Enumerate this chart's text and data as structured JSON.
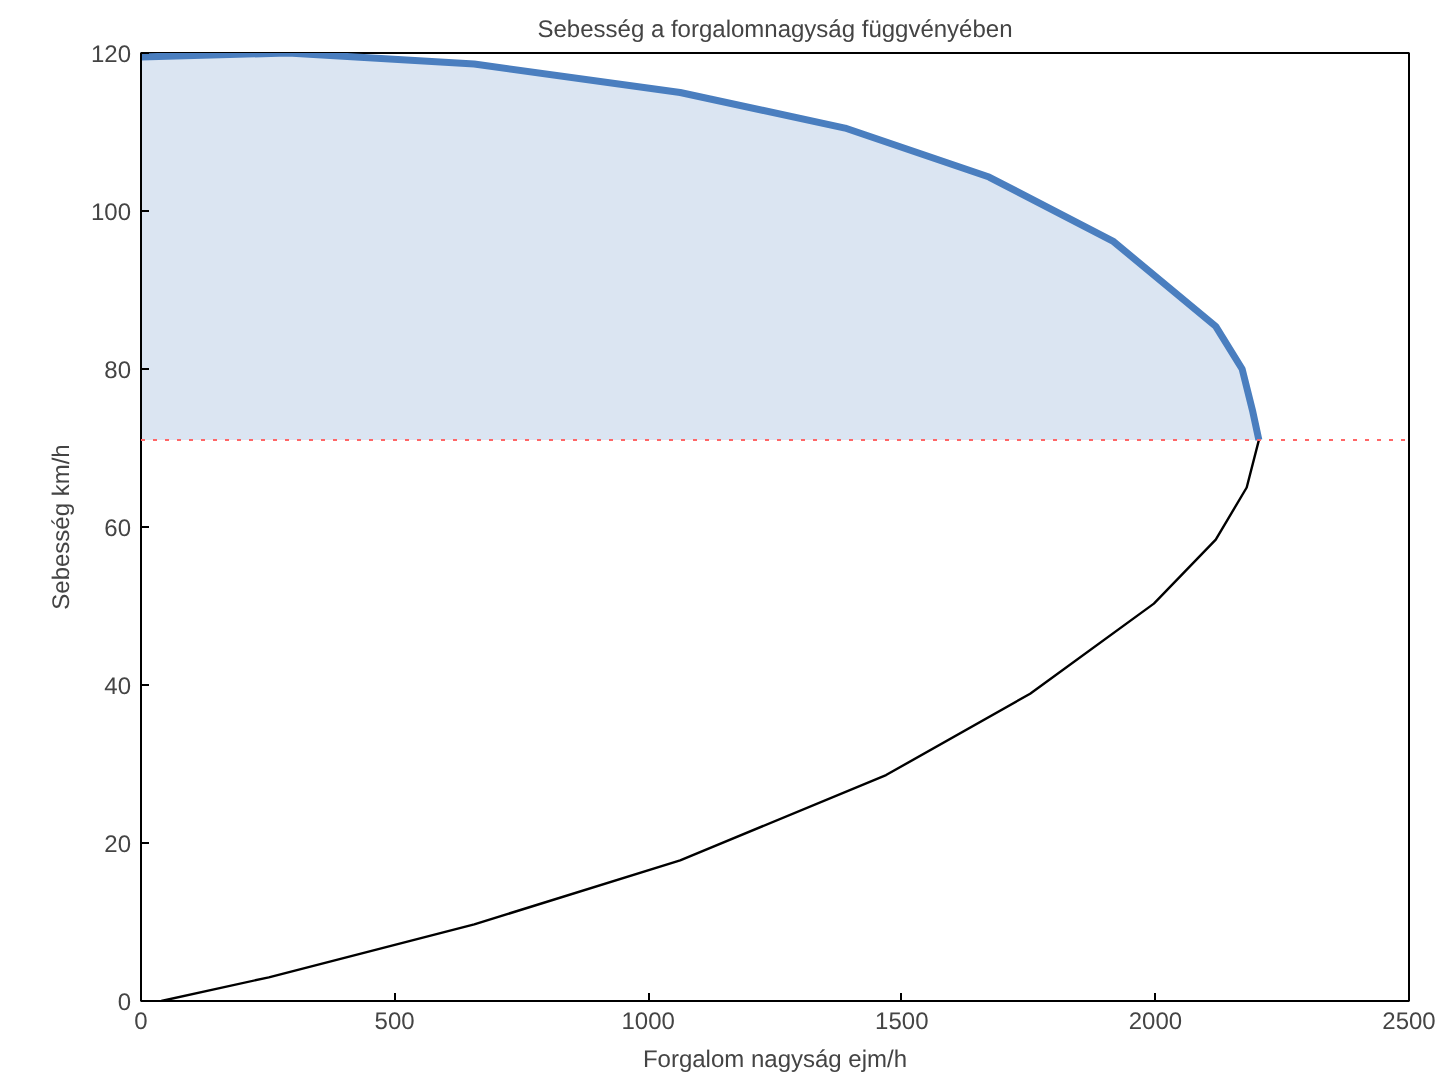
{
  "chart_data": {
    "type": "line",
    "title": "Sebesség a forgalomnagyság függvényében",
    "xlabel": "Forgalom nagyság ejm/h",
    "ylabel": "Sebesség km/h",
    "xlim": [
      0,
      2500
    ],
    "xticks": [
      0,
      500,
      1000,
      1500,
      2000,
      2500
    ],
    "ylim": [
      0,
      120
    ],
    "yticks": [
      0,
      20,
      40,
      60,
      80,
      100,
      120
    ],
    "grid": false,
    "series": [
      {
        "color": "#4a7ebf",
        "x": [
          0,
          290,
          657,
          1063,
          1388,
          1672,
          1916,
          2119,
          2171,
          2192,
          2204
        ],
        "values": [
          119.5,
          120,
          118.6,
          115,
          110.5,
          104.3,
          96.2,
          85.4,
          80,
          74.6,
          71
        ],
        "lower": [
          71,
          71,
          71,
          71,
          71,
          71,
          71,
          71,
          71,
          71,
          71
        ],
        "upper": [
          119.5,
          120,
          118.6,
          115,
          110.5,
          104.3,
          96.2,
          85.4,
          80,
          74.6,
          71
        ]
      },
      {
        "color": "#000000",
        "x": [
          40,
          252,
          657,
          1063,
          1469,
          1753,
          1997,
          2119,
          2180,
          2204
        ],
        "values": [
          0,
          3,
          9.7,
          17.8,
          28.6,
          38.9,
          50.3,
          58.4,
          65,
          71
        ]
      }
    ],
    "ref_lines": [
      {
        "axis": "y",
        "value": 71,
        "color": "#ff6666",
        "line_style": "dotted"
      }
    ]
  }
}
